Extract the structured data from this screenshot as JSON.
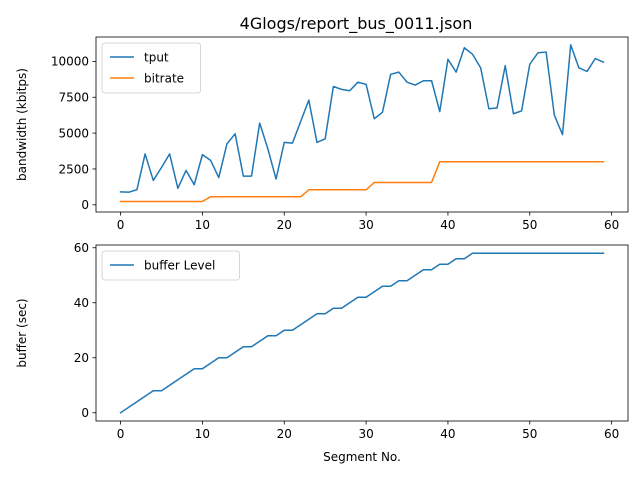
{
  "figure": {
    "title": "4Glogs/report_bus_0011.json"
  },
  "chart_data": [
    {
      "type": "line",
      "title": "4Glogs/report_bus_0011.json",
      "xlabel": "",
      "ylabel": "bandwidth (kbitps)",
      "xlim": [
        -3,
        62
      ],
      "ylim": [
        -500,
        11700
      ],
      "xticks": [
        0,
        10,
        20,
        30,
        40,
        50,
        60
      ],
      "yticks": [
        0,
        2500,
        5000,
        7500,
        10000
      ],
      "ytick_labels": [
        "0",
        "2500",
        "5000",
        "7500",
        "10000"
      ],
      "legend": "top-left",
      "grid": false,
      "series": [
        {
          "name": "tput",
          "color": "#1f77b4",
          "x": [
            0,
            1,
            2,
            3,
            4,
            5,
            6,
            7,
            8,
            9,
            10,
            11,
            12,
            13,
            14,
            15,
            16,
            17,
            18,
            19,
            20,
            21,
            22,
            23,
            24,
            25,
            26,
            27,
            28,
            29,
            30,
            31,
            32,
            33,
            34,
            35,
            36,
            37,
            38,
            39,
            40,
            41,
            42,
            43,
            44,
            45,
            46,
            47,
            48,
            49,
            50,
            51,
            52,
            53,
            54,
            55,
            56,
            57,
            58,
            59
          ],
          "values": [
            900,
            880,
            1050,
            3550,
            1700,
            2600,
            3550,
            1150,
            2400,
            1400,
            3500,
            3100,
            1900,
            4250,
            4950,
            2000,
            2000,
            5700,
            3900,
            1800,
            4350,
            4300,
            5800,
            7300,
            4350,
            4600,
            8250,
            8050,
            7950,
            8550,
            8400,
            6000,
            6450,
            9100,
            9250,
            8550,
            8350,
            8650,
            8650,
            6500,
            10150,
            9250,
            10950,
            10500,
            9550,
            6700,
            6750,
            9700,
            6350,
            6550,
            9800,
            10600,
            10650,
            6250,
            4900,
            11150,
            9550,
            9300,
            10200,
            9950
          ]
        },
        {
          "name": "bitrate",
          "color": "#ff7f0e",
          "x": [
            0,
            1,
            2,
            3,
            4,
            5,
            6,
            7,
            8,
            9,
            10,
            11,
            12,
            13,
            14,
            15,
            16,
            17,
            18,
            19,
            20,
            21,
            22,
            23,
            24,
            25,
            26,
            27,
            28,
            29,
            30,
            31,
            32,
            33,
            34,
            35,
            36,
            37,
            38,
            39,
            40,
            41,
            42,
            43,
            44,
            45,
            46,
            47,
            48,
            49,
            50,
            51,
            52,
            53,
            54,
            55,
            56,
            57,
            58,
            59
          ],
          "values": [
            235,
            235,
            235,
            235,
            235,
            235,
            235,
            235,
            235,
            235,
            235,
            560,
            560,
            560,
            560,
            560,
            560,
            560,
            560,
            560,
            560,
            560,
            560,
            1050,
            1050,
            1050,
            1050,
            1050,
            1050,
            1050,
            1050,
            1560,
            1560,
            1560,
            1560,
            1560,
            1560,
            1560,
            1560,
            3000,
            3000,
            3000,
            3000,
            3000,
            3000,
            3000,
            3000,
            3000,
            3000,
            3000,
            3000,
            3000,
            3000,
            3000,
            3000,
            3000,
            3000,
            3000,
            3000,
            3000
          ]
        }
      ]
    },
    {
      "type": "line",
      "title": "",
      "xlabel": "Segment No.",
      "ylabel": "buffer (sec)",
      "xlim": [
        -3,
        62
      ],
      "ylim": [
        -3,
        61
      ],
      "xticks": [
        0,
        10,
        20,
        30,
        40,
        50,
        60
      ],
      "yticks": [
        0,
        20,
        40,
        60
      ],
      "ytick_labels": [
        "0",
        "20",
        "40",
        "60"
      ],
      "legend": "top-left",
      "grid": false,
      "series": [
        {
          "name": "buffer Level",
          "color": "#1f77b4",
          "x": [
            0,
            1,
            2,
            3,
            4,
            5,
            6,
            7,
            8,
            9,
            10,
            11,
            12,
            13,
            14,
            15,
            16,
            17,
            18,
            19,
            20,
            21,
            22,
            23,
            24,
            25,
            26,
            27,
            28,
            29,
            30,
            31,
            32,
            33,
            34,
            35,
            36,
            37,
            38,
            39,
            40,
            41,
            42,
            43,
            44,
            45,
            46,
            47,
            48,
            49,
            50,
            51,
            52,
            53,
            54,
            55,
            56,
            57,
            58,
            59
          ],
          "values": [
            0,
            2,
            4,
            6,
            8,
            8,
            10,
            12,
            14,
            16,
            16,
            18,
            20,
            20,
            22,
            24,
            24,
            26,
            28,
            28,
            30,
            30,
            32,
            34,
            36,
            36,
            38,
            38,
            40,
            42,
            42,
            44,
            46,
            46,
            48,
            48,
            50,
            52,
            52,
            54,
            54,
            56,
            56,
            58,
            58,
            58,
            58,
            58,
            58,
            58,
            58,
            58,
            58,
            58,
            58,
            58,
            58,
            58,
            58,
            58
          ]
        }
      ]
    }
  ]
}
